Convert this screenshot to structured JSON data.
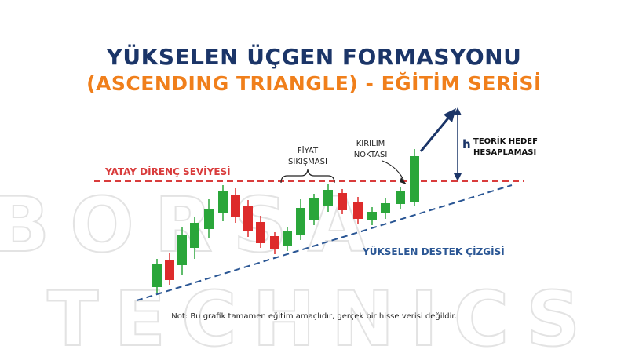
{
  "title": {
    "line1": "YÜKSELEN ÜÇGEN FORMASYONU",
    "line2": "(ASCENDING TRIANGLE) - EĞİTİM SERİSİ"
  },
  "watermark": {
    "line1": "BORSA",
    "line2": "TECHNICS"
  },
  "labels": {
    "resistance": "YATAY DİRENÇ SEVİYESİ",
    "support": "YÜKSELEN DESTEK ÇİZGİSİ",
    "squeeze_line1": "FİYAT",
    "squeeze_line2": "SIKIŞMASI",
    "breakout_line1": "KIRILIM",
    "breakout_line2": "NOKTASI",
    "h_symbol": "h",
    "target_line1": "TEORİK HEDEF",
    "target_line2": "HESAPLAMASI"
  },
  "footnote": "Not: Bu grafik tamamen eğitim amaçlıdır, gerçek bir hisse verisi değildir.",
  "colors": {
    "navy": "#1b3568",
    "orange": "#f07f1b",
    "bull": "#2aa63a",
    "bear": "#dd2b2b",
    "resistance": "#d93c3c",
    "support": "#2a5694",
    "watermark": "#e9e9e9"
  }
}
